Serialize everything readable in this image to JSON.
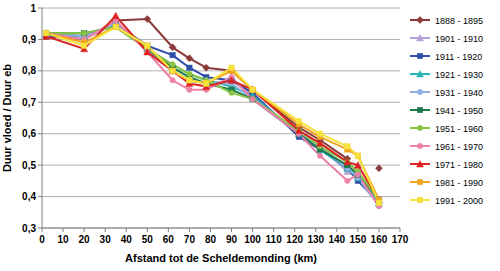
{
  "chart_data": {
    "type": "line",
    "x_label": "Afstand tot de Scheldemonding (km)",
    "y_label": "Duur vloed / Duur eb",
    "x": [
      2,
      20,
      35,
      50,
      62,
      70,
      78,
      90,
      100,
      122,
      132,
      145,
      150,
      160
    ],
    "xlim": [
      0,
      170
    ],
    "xticks": [
      0,
      10,
      20,
      30,
      40,
      50,
      60,
      70,
      80,
      90,
      100,
      110,
      120,
      130,
      140,
      150,
      160,
      170
    ],
    "ylim": [
      0.3,
      1
    ],
    "yticks": [
      {
        "value": 0.3,
        "label": "0,3"
      },
      {
        "value": 0.4,
        "label": "0,4"
      },
      {
        "value": 0.5,
        "label": "0,5"
      },
      {
        "value": 0.6,
        "label": "0,6"
      },
      {
        "value": 0.7,
        "label": "0,7"
      },
      {
        "value": 0.8,
        "label": "0,8"
      },
      {
        "value": 0.9,
        "label": "0,9"
      },
      1
    ],
    "grid": true,
    "legend": "right",
    "series": [
      {
        "name": "1888 - 1895",
        "color": "#8b3a3a",
        "marker": "diamond",
        "values": [
          0.91,
          0.9,
          0.96,
          0.965,
          0.875,
          0.84,
          0.81,
          0.8,
          0.74,
          0.62,
          0.58,
          0.52,
          null,
          0.49
        ]
      },
      {
        "name": "1901 - 1910",
        "color": "#b3a2d6",
        "marker": "triangle",
        "values": [
          0.92,
          0.9,
          0.95,
          0.87,
          0.8,
          0.77,
          0.76,
          0.77,
          0.72,
          0.6,
          0.56,
          0.48,
          0.46,
          0.38
        ]
      },
      {
        "name": "1911 - 1920",
        "color": "#2f4fa8",
        "marker": "square",
        "values": [
          0.91,
          0.91,
          0.95,
          0.88,
          0.85,
          0.81,
          0.78,
          0.77,
          0.73,
          0.59,
          0.55,
          0.49,
          0.45,
          0.38
        ]
      },
      {
        "name": "1921 - 1930",
        "color": "#2ab3b3",
        "marker": "triangle",
        "values": [
          0.92,
          0.91,
          0.95,
          0.87,
          0.82,
          0.79,
          0.77,
          0.75,
          0.72,
          0.6,
          0.55,
          0.49,
          0.46,
          0.38
        ]
      },
      {
        "name": "1931 - 1940",
        "color": "#8fb0e0",
        "marker": "circle",
        "values": [
          0.92,
          0.91,
          0.95,
          0.87,
          0.8,
          0.77,
          0.76,
          0.76,
          0.71,
          0.6,
          0.56,
          0.49,
          0.46,
          0.37
        ]
      },
      {
        "name": "1941 - 1950",
        "color": "#1a7a4a",
        "marker": "square",
        "values": [
          0.92,
          0.92,
          0.94,
          0.87,
          0.81,
          0.78,
          0.76,
          0.74,
          0.71,
          0.6,
          0.55,
          0.5,
          0.47,
          0.39
        ]
      },
      {
        "name": "1951 - 1960",
        "color": "#8cc443",
        "marker": "circle",
        "values": [
          0.92,
          0.92,
          0.94,
          0.87,
          0.82,
          0.79,
          0.77,
          0.73,
          0.71,
          0.61,
          0.56,
          0.51,
          0.48,
          0.39
        ]
      },
      {
        "name": "1961 - 1970",
        "color": "#ec82a8",
        "marker": "circle",
        "values": [
          0.92,
          0.9,
          0.96,
          0.86,
          0.77,
          0.74,
          0.74,
          0.78,
          0.71,
          0.6,
          0.53,
          0.45,
          0.47,
          0.37
        ]
      },
      {
        "name": "1971 - 1980",
        "color": "#dd2222",
        "marker": "triangle",
        "values": [
          0.91,
          0.87,
          0.975,
          0.86,
          0.8,
          0.76,
          0.75,
          0.77,
          0.74,
          0.61,
          0.57,
          0.51,
          0.5,
          0.39
        ]
      },
      {
        "name": "1981 - 1990",
        "color": "#f2a51f",
        "marker": "square",
        "values": [
          0.92,
          0.89,
          0.94,
          0.88,
          0.8,
          0.77,
          0.76,
          0.8,
          0.74,
          0.63,
          0.59,
          0.55,
          0.53,
          0.39
        ]
      },
      {
        "name": "1991 - 2000",
        "color": "#f5e23c",
        "marker": "square",
        "values": [
          0.92,
          0.88,
          0.94,
          0.88,
          0.8,
          0.77,
          0.76,
          0.81,
          0.74,
          0.64,
          0.6,
          0.56,
          0.53,
          0.38
        ]
      }
    ]
  }
}
